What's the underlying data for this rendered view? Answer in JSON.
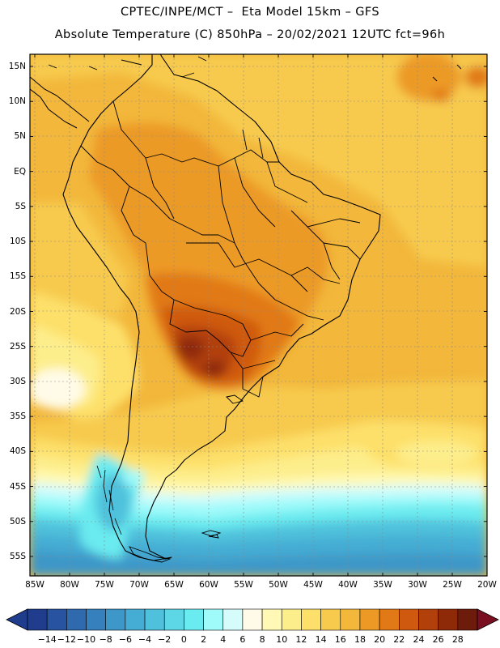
{
  "header": {
    "line1": "CPTEC/INPE/MCT –  Eta Model 15km – GFS",
    "line2": "Absolute Temperature (C) 850hPa – 20/02/2021 12UTC fct=96h"
  },
  "axes": {
    "lat_labels": [
      "15N",
      "10N",
      "5N",
      "EQ",
      "5S",
      "10S",
      "15S",
      "20S",
      "25S",
      "30S",
      "35S",
      "40S",
      "45S",
      "50S",
      "55S"
    ],
    "lat_values": [
      15,
      10,
      5,
      0,
      -5,
      -10,
      -15,
      -20,
      -25,
      -30,
      -35,
      -40,
      -45,
      -50,
      -55
    ],
    "lon_labels": [
      "85W",
      "80W",
      "75W",
      "70W",
      "65W",
      "60W",
      "55W",
      "50W",
      "45W",
      "40W",
      "35W",
      "30W",
      "25W",
      "20W"
    ],
    "lon_values": [
      -85,
      -80,
      -75,
      -70,
      -65,
      -60,
      -55,
      -50,
      -45,
      -40,
      -35,
      -30,
      -25,
      -20
    ],
    "lat_range": [
      -58,
      17
    ],
    "lon_range": [
      -86,
      -20
    ]
  },
  "colorbar": {
    "labels": [
      "-14",
      "-12",
      "-10",
      "-8",
      "-6",
      "-4",
      "-2",
      "0",
      "2",
      "4",
      "6",
      "8",
      "10",
      "12",
      "14",
      "16",
      "18",
      "20",
      "22",
      "24",
      "26",
      "28"
    ],
    "colors": [
      "#1f3d8c",
      "#2753a0",
      "#2f6aaf",
      "#3681bd",
      "#3d97c8",
      "#45acd3",
      "#4fc1dc",
      "#5dd6e6",
      "#6aebef",
      "#9ffafa",
      "#d6fbfb",
      "#fffbe8",
      "#fff9b5",
      "#fdee8c",
      "#fde06a",
      "#f7ca4d",
      "#f2b73b",
      "#ec9a25",
      "#e17916",
      "#cf5a0f",
      "#b2400b",
      "#8f2a09",
      "#6d1b0a"
    ]
  }
}
